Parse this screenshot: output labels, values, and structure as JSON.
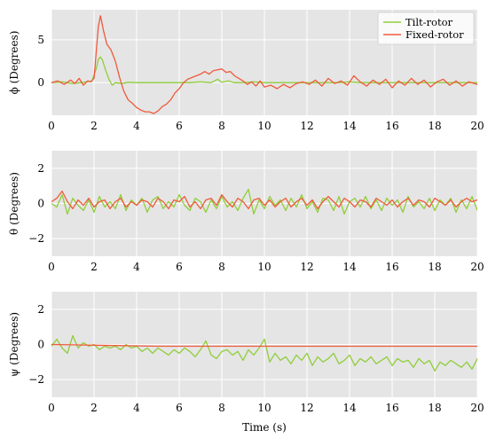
{
  "chart_data": [
    {
      "type": "line",
      "ylabel": "ϕ (Degrees)",
      "xlim": [
        0,
        20
      ],
      "ylim": [
        -3.8,
        8.5
      ],
      "yticks": [
        0,
        5
      ],
      "xticks": [
        0,
        2,
        4,
        6,
        8,
        10,
        12,
        14,
        16,
        18,
        20
      ],
      "grid": true,
      "legend": "top-right",
      "series": [
        {
          "name": "Tilt-rotor",
          "color": "#8fce3a",
          "x": [
            0,
            0.5,
            1,
            1.5,
            1.9,
            2.1,
            2.2,
            2.3,
            2.4,
            2.55,
            2.7,
            2.85,
            3,
            3.3,
            3.6,
            4,
            4.5,
            5,
            5.5,
            6,
            6.5,
            7,
            7.5,
            7.8,
            8,
            8.3,
            8.6,
            9,
            9.5,
            10,
            10.5,
            11,
            11.5,
            12,
            12.5,
            13,
            13.5,
            14,
            14.5,
            15,
            15.5,
            16,
            16.5,
            17,
            17.5,
            18,
            18.5,
            19,
            19.5,
            20
          ],
          "y": [
            0,
            0.1,
            -0.1,
            0.05,
            0.2,
            1.6,
            2.7,
            3.0,
            2.6,
            1.4,
            0.4,
            -0.3,
            0,
            -0.1,
            0.05,
            0,
            0,
            0,
            0,
            0,
            0,
            0.1,
            0,
            0.4,
            0.05,
            0.2,
            0,
            0,
            0.1,
            0,
            0,
            0,
            0,
            0,
            0,
            0,
            0,
            0.1,
            0,
            0,
            0,
            0,
            0,
            0,
            0,
            0,
            0,
            0,
            0,
            0
          ]
        },
        {
          "name": "Fixed-rotor",
          "color": "#f05a3c",
          "x": [
            0,
            0.3,
            0.6,
            0.9,
            1.1,
            1.3,
            1.5,
            1.7,
            1.85,
            2.0,
            2.1,
            2.2,
            2.3,
            2.45,
            2.6,
            2.8,
            3.0,
            3.2,
            3.4,
            3.6,
            3.8,
            4.0,
            4.2,
            4.4,
            4.6,
            4.8,
            5.0,
            5.2,
            5.4,
            5.6,
            5.8,
            6.0,
            6.2,
            6.4,
            6.6,
            6.8,
            7.0,
            7.2,
            7.4,
            7.6,
            7.8,
            8.0,
            8.2,
            8.4,
            8.6,
            8.8,
            9.0,
            9.2,
            9.4,
            9.6,
            9.8,
            10.0,
            10.3,
            10.6,
            10.9,
            11.2,
            11.5,
            11.8,
            12.1,
            12.4,
            12.7,
            13.0,
            13.3,
            13.6,
            13.9,
            14.2,
            14.5,
            14.8,
            15.1,
            15.4,
            15.7,
            16.0,
            16.3,
            16.6,
            16.9,
            17.2,
            17.5,
            17.8,
            18.1,
            18.4,
            18.7,
            19.0,
            19.3,
            19.6,
            20.0
          ],
          "y": [
            0,
            0.2,
            -0.2,
            0.3,
            -0.1,
            0.5,
            -0.3,
            0.2,
            0.1,
            0.5,
            3.5,
            6.5,
            7.8,
            6.0,
            4.5,
            3.8,
            2.5,
            0.6,
            -1.0,
            -2.0,
            -2.4,
            -2.9,
            -3.2,
            -3.4,
            -3.4,
            -3.6,
            -3.3,
            -2.8,
            -2.5,
            -2.0,
            -1.2,
            -0.7,
            0.0,
            0.4,
            0.6,
            0.8,
            1.0,
            1.3,
            1.0,
            1.4,
            1.5,
            1.6,
            1.2,
            1.3,
            0.8,
            0.5,
            0.2,
            -0.2,
            0.1,
            -0.4,
            0.2,
            -0.5,
            -0.3,
            -0.7,
            -0.2,
            -0.6,
            -0.1,
            0.1,
            -0.2,
            0.3,
            -0.4,
            0.5,
            -0.1,
            0.2,
            -0.3,
            0.8,
            0.1,
            -0.4,
            0.3,
            -0.2,
            0.4,
            -0.6,
            0.2,
            -0.3,
            0.5,
            -0.2,
            0.3,
            -0.5,
            0.1,
            0.4,
            -0.3,
            0.2,
            -0.4,
            0.1,
            -0.2
          ]
        }
      ]
    },
    {
      "type": "line",
      "ylabel": "θ (Degrees)",
      "xlim": [
        0,
        20
      ],
      "ylim": [
        -3,
        3
      ],
      "yticks": [
        -2,
        0,
        2
      ],
      "xticks": [
        0,
        2,
        4,
        6,
        8,
        10,
        12,
        14,
        16,
        18,
        20
      ],
      "grid": true,
      "series": [
        {
          "name": "Tilt-rotor",
          "color": "#8fce3a",
          "x": [
            0,
            0.25,
            0.5,
            0.75,
            1,
            1.25,
            1.5,
            1.75,
            2,
            2.25,
            2.5,
            2.75,
            3,
            3.25,
            3.5,
            3.75,
            4,
            4.25,
            4.5,
            4.75,
            5,
            5.25,
            5.5,
            5.75,
            6,
            6.25,
            6.5,
            6.75,
            7,
            7.25,
            7.5,
            7.75,
            8,
            8.25,
            8.5,
            8.75,
            9,
            9.25,
            9.5,
            9.75,
            10,
            10.25,
            10.5,
            10.75,
            11,
            11.25,
            11.5,
            11.75,
            12,
            12.25,
            12.5,
            12.75,
            13,
            13.25,
            13.5,
            13.75,
            14,
            14.25,
            14.5,
            14.75,
            15,
            15.25,
            15.5,
            15.75,
            16,
            16.25,
            16.5,
            16.75,
            17,
            17.25,
            17.5,
            17.75,
            18,
            18.25,
            18.5,
            18.75,
            19,
            19.25,
            19.5,
            19.75,
            20
          ],
          "y": [
            0,
            -0.2,
            0.5,
            -0.6,
            0.3,
            -0.1,
            -0.4,
            0.2,
            -0.5,
            0.4,
            -0.2,
            0.1,
            -0.3,
            0.5,
            -0.4,
            0.2,
            -0.1,
            0.3,
            -0.5,
            0.2,
            0.4,
            -0.3,
            0.1,
            -0.2,
            0.5,
            -0.1,
            -0.4,
            0.3,
            0.1,
            -0.5,
            0.2,
            -0.3,
            0.4,
            -0.2,
            0.1,
            -0.4,
            0.3,
            0.8,
            -0.6,
            0.2,
            -0.3,
            0.4,
            -0.1,
            0.2,
            -0.4,
            0.3,
            -0.2,
            0.5,
            -0.3,
            0.1,
            -0.5,
            0.3,
            0.2,
            -0.4,
            0.4,
            -0.6,
            0.1,
            0.3,
            -0.2,
            0.4,
            -0.3,
            0.2,
            -0.4,
            0.3,
            -0.1,
            0.2,
            -0.5,
            0.4,
            -0.2,
            0.1,
            -0.3,
            0.3,
            -0.4,
            0.2,
            -0.1,
            0.3,
            -0.5,
            0.2,
            -0.3,
            0.4,
            -0.4
          ]
        },
        {
          "name": "Fixed-rotor",
          "color": "#f05a3c",
          "x": [
            0,
            0.25,
            0.5,
            0.75,
            1,
            1.25,
            1.5,
            1.75,
            2,
            2.25,
            2.5,
            2.75,
            3,
            3.25,
            3.5,
            3.75,
            4,
            4.25,
            4.5,
            4.75,
            5,
            5.25,
            5.5,
            5.75,
            6,
            6.25,
            6.5,
            6.75,
            7,
            7.25,
            7.5,
            7.75,
            8,
            8.25,
            8.5,
            8.75,
            9,
            9.25,
            9.5,
            9.75,
            10,
            10.25,
            10.5,
            10.75,
            11,
            11.25,
            11.5,
            11.75,
            12,
            12.25,
            12.5,
            12.75,
            13,
            13.25,
            13.5,
            13.75,
            14,
            14.25,
            14.5,
            14.75,
            15,
            15.25,
            15.5,
            15.75,
            16,
            16.25,
            16.5,
            16.75,
            17,
            17.25,
            17.5,
            17.75,
            18,
            18.25,
            18.5,
            18.75,
            19,
            19.25,
            19.5,
            19.75,
            20
          ],
          "y": [
            0.1,
            0.3,
            0.7,
            0.1,
            -0.3,
            0.2,
            -0.1,
            0.3,
            -0.2,
            0.1,
            0.2,
            -0.3,
            0.1,
            0.3,
            -0.2,
            0.1,
            -0.1,
            0.2,
            0.1,
            -0.2,
            0.3,
            0.1,
            -0.3,
            0.2,
            0.1,
            0.4,
            -0.2,
            0.1,
            -0.3,
            0.2,
            0.3,
            -0.1,
            0.5,
            0.1,
            -0.2,
            0.3,
            0.1,
            -0.3,
            0.2,
            0.3,
            -0.1,
            0.2,
            -0.2,
            0.1,
            0.3,
            -0.2,
            0.1,
            0.3,
            -0.1,
            0.2,
            -0.3,
            0.1,
            0.4,
            0.1,
            -0.2,
            0.3,
            0.1,
            -0.2,
            0.2,
            0.1,
            -0.2,
            0.3,
            0.1,
            -0.1,
            0.2,
            -0.2,
            0.1,
            0.3,
            -0.1,
            0.2,
            0.1,
            -0.2,
            0.3,
            0.1,
            -0.1,
            0.2,
            -0.2,
            0.1,
            0.3,
            0.1,
            0.2
          ]
        }
      ]
    },
    {
      "type": "line",
      "ylabel": "ψ (Degrees)",
      "xlabel": "Time (s)",
      "xlim": [
        0,
        20
      ],
      "ylim": [
        -3,
        3
      ],
      "yticks": [
        -2,
        0,
        2
      ],
      "xticks": [
        0,
        2,
        4,
        6,
        8,
        10,
        12,
        14,
        16,
        18,
        20
      ],
      "grid": true,
      "series": [
        {
          "name": "Tilt-rotor",
          "color": "#8fce3a",
          "x": [
            0,
            0.25,
            0.5,
            0.75,
            1,
            1.25,
            1.5,
            1.75,
            2,
            2.25,
            2.5,
            2.75,
            3,
            3.25,
            3.5,
            3.75,
            4,
            4.25,
            4.5,
            4.75,
            5,
            5.25,
            5.5,
            5.75,
            6,
            6.25,
            6.5,
            6.75,
            7,
            7.25,
            7.5,
            7.75,
            8,
            8.25,
            8.5,
            8.75,
            9,
            9.25,
            9.5,
            9.75,
            10,
            10.25,
            10.5,
            10.75,
            11,
            11.25,
            11.5,
            11.75,
            12,
            12.25,
            12.5,
            12.75,
            13,
            13.25,
            13.5,
            13.75,
            14,
            14.25,
            14.5,
            14.75,
            15,
            15.25,
            15.5,
            15.75,
            16,
            16.25,
            16.5,
            16.75,
            17,
            17.25,
            17.5,
            17.75,
            18,
            18.25,
            18.5,
            18.75,
            19,
            19.25,
            19.5,
            19.75,
            20
          ],
          "y": [
            -0.1,
            0.3,
            -0.2,
            -0.5,
            0.5,
            -0.2,
            0.1,
            -0.1,
            0.0,
            -0.3,
            -0.1,
            -0.2,
            -0.1,
            -0.3,
            0.0,
            -0.2,
            -0.1,
            -0.4,
            -0.2,
            -0.5,
            -0.2,
            -0.4,
            -0.6,
            -0.3,
            -0.5,
            -0.2,
            -0.4,
            -0.7,
            -0.3,
            0.2,
            -0.6,
            -0.8,
            -0.4,
            -0.3,
            -0.6,
            -0.4,
            -0.9,
            -0.3,
            -0.6,
            -0.2,
            0.3,
            -1.0,
            -0.5,
            -0.9,
            -0.7,
            -1.1,
            -0.6,
            -0.9,
            -0.5,
            -1.2,
            -0.7,
            -1.0,
            -0.8,
            -0.5,
            -1.1,
            -0.9,
            -0.6,
            -1.2,
            -0.8,
            -1.0,
            -0.7,
            -1.1,
            -0.9,
            -0.7,
            -1.2,
            -0.8,
            -1.0,
            -0.9,
            -1.3,
            -0.8,
            -1.1,
            -0.9,
            -1.5,
            -1.0,
            -1.2,
            -0.9,
            -1.1,
            -1.3,
            -1.0,
            -1.4,
            -0.8
          ]
        },
        {
          "name": "Fixed-rotor",
          "color": "#f05a3c",
          "x": [
            0,
            1,
            2,
            3,
            4,
            5,
            6,
            7,
            8,
            9,
            10,
            11,
            12,
            13,
            14,
            15,
            16,
            17,
            18,
            19,
            20
          ],
          "y": [
            0.0,
            -0.02,
            -0.04,
            -0.06,
            -0.08,
            -0.1,
            -0.1,
            -0.1,
            -0.1,
            -0.1,
            -0.1,
            -0.1,
            -0.1,
            -0.1,
            -0.1,
            -0.1,
            -0.1,
            -0.1,
            -0.1,
            -0.1,
            -0.1
          ]
        }
      ]
    }
  ]
}
